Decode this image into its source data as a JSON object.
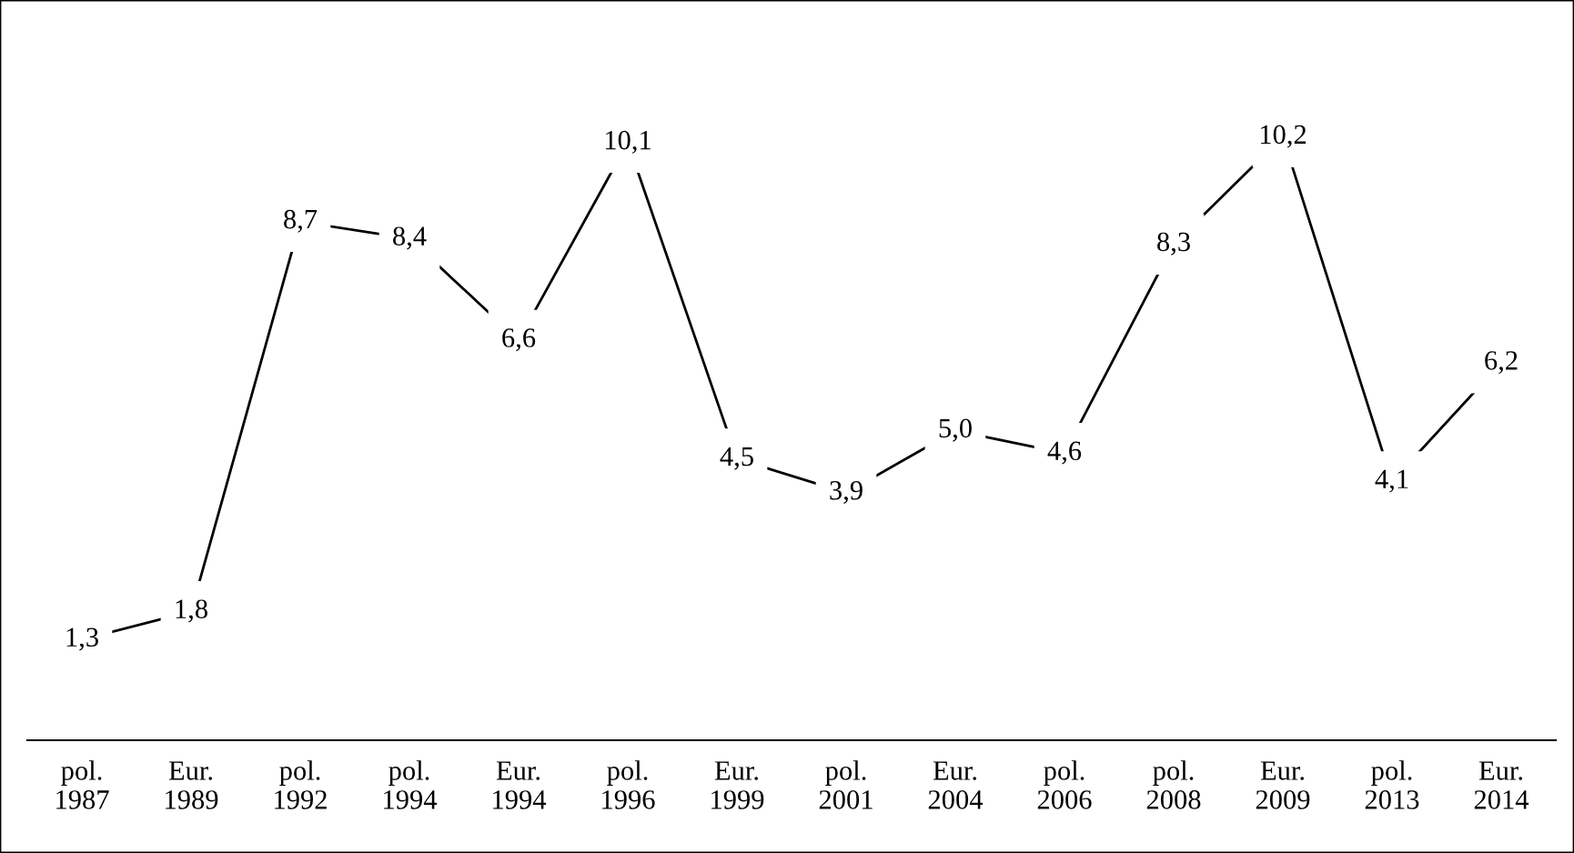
{
  "chart_data": {
    "type": "line",
    "categories": [
      "pol.\n1987",
      "Eur.\n1989",
      "pol.\n1992",
      "pol.\n1994",
      "Eur.\n1994",
      "pol.\n1996",
      "Eur.\n1999",
      "pol.\n2001",
      "Eur.\n2004",
      "pol.\n2006",
      "pol.\n2008",
      "Eur.\n2009",
      "pol.\n2013",
      "Eur.\n2014"
    ],
    "values": [
      1.3,
      1.8,
      8.7,
      8.4,
      6.6,
      10.1,
      4.5,
      3.9,
      5.0,
      4.6,
      8.3,
      10.2,
      4.1,
      6.2
    ],
    "value_labels": [
      "1,3",
      "1,8",
      "8,7",
      "8,4",
      "6,6",
      "10,1",
      "4,5",
      "3,9",
      "5,0",
      "4,6",
      "8,3",
      "10,2",
      "4,1",
      "6,2"
    ],
    "color": "#000000",
    "tick_labels": "x",
    "grid": false,
    "legend": false,
    "marker": "square",
    "line_style": "solid"
  }
}
